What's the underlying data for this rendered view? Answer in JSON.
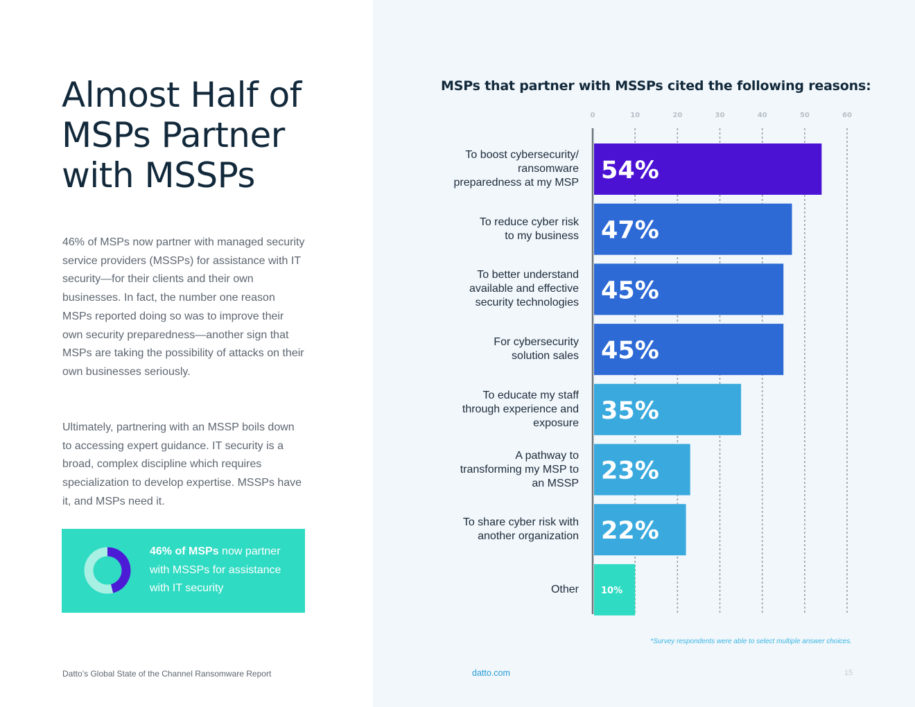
{
  "headline": "Almost Half of\nMSPs Partner\nwith MSSPs",
  "body": {
    "paragraph_1": "46% of MSPs now partner with managed security service providers (MSSPs) for assistance with IT security—for their clients and their own businesses. In fact, the number one reason MSPs reported doing so was to improve their own security preparedness—another sign that MSPs are taking the possibility of attacks on their own businesses seriously.",
    "paragraph_2": "Ultimately, partnering with an MSSP boils down to accessing expert guidance. IT security is a broad, complex discipline which requires specialization to develop expertise. MSSPs have it, and MSPs need it."
  },
  "callout": {
    "value_percent": 46,
    "bold_text": "46% of MSPs",
    "text": " now partner with MSSPs for assistance with IT security",
    "colors": {
      "ring_filled": "#4b1bd6",
      "ring_empty": "#a8f0e4",
      "background": "#2fdbc2"
    }
  },
  "chart_data": {
    "type": "bar",
    "orientation": "horizontal",
    "title": "MSPs that partner with MSSPs cited the following reasons:",
    "xlim": [
      0,
      60
    ],
    "x_ticks": [
      "0",
      "10",
      "20",
      "30",
      "40",
      "50",
      "60"
    ],
    "grid": true,
    "categories": [
      "To boost cybersecurity/\nransomware\npreparedness at my MSP",
      "To reduce cyber risk\nto my business",
      "To better understand\navailable and effective\nsecurity technologies",
      "For cybersecurity\nsolution sales",
      "To educate my staff\nthrough experience and\nexposure",
      "A pathway to\ntransforming my MSP to\nan MSSP",
      "To share cyber risk with\nanother organization",
      "Other"
    ],
    "values": [
      54,
      47,
      45,
      45,
      35,
      23,
      22,
      10
    ],
    "value_labels": [
      "54%",
      "47%",
      "45%",
      "45%",
      "35%",
      "23%",
      "22%",
      "10%"
    ],
    "colors": [
      "#4b12d4",
      "#2d6ad6",
      "#2d6ad6",
      "#2d6ad6",
      "#3aaade",
      "#3aaade",
      "#3aaade",
      "#2fdbc2"
    ],
    "footnote": "*Survey respondents were able to select multiple answer choices."
  },
  "footer": {
    "report": "Datto’s Global State of the Channel Ransomware Report",
    "site": "datto.com",
    "page": "15"
  }
}
